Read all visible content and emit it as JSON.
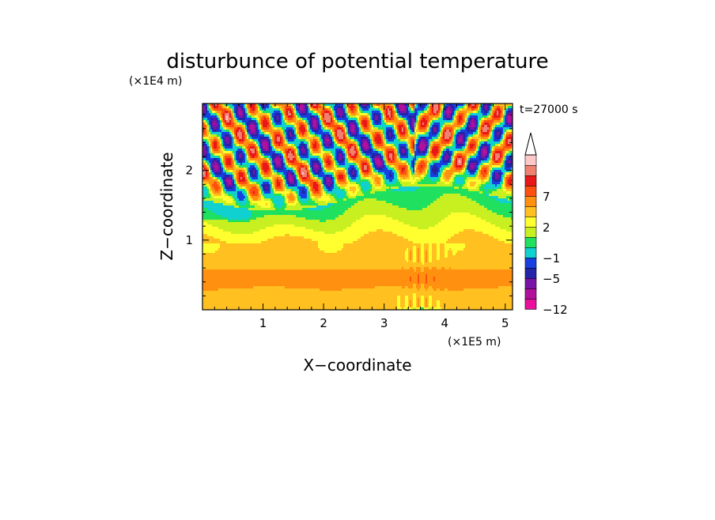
{
  "chart_data": {
    "type": "heatmap",
    "title": "disturbunce of potential temperature",
    "time_label": "t=27000 s",
    "xlabel": "X−coordinate",
    "ylabel": "Z−coordinate",
    "x_multiplier": "(×1E5 m)",
    "y_multiplier": "(×1E4 m)",
    "xlim": [
      0,
      5.12
    ],
    "ylim": [
      0,
      2.96
    ],
    "x_ticks": [
      1,
      2,
      3,
      4,
      5
    ],
    "y_ticks": [
      1,
      2
    ],
    "colorbar": {
      "levels": [
        -12,
        -9,
        -7,
        -5,
        -3,
        -1,
        0,
        1,
        2,
        3,
        5,
        7,
        9,
        11
      ],
      "colors": [
        "#e8109c",
        "#b0109c",
        "#7a14a8",
        "#2424a8",
        "#1840e0",
        "#10d0d0",
        "#20e060",
        "#c8f020",
        "#ffff30",
        "#ffc020",
        "#ff9010",
        "#ff5010",
        "#e81818",
        "#f08070",
        "#ffc8c8"
      ],
      "tick_labels": [
        "−12",
        "−5",
        "−1",
        "2",
        "7"
      ],
      "tick_values": [
        -12,
        -5,
        -1,
        2,
        7
      ],
      "extend": "max"
    },
    "field_description": {
      "lower_layer": {
        "z_range": [
          0,
          1.0
        ],
        "value_range": [
          2,
          5
        ]
      },
      "mid_layer": {
        "z_range": [
          1.0,
          1.6
        ],
        "value_range": [
          -1,
          2
        ]
      },
      "upper_layer": {
        "z_range": [
          1.6,
          2.96
        ],
        "value_range": [
          -9,
          11
        ]
      }
    }
  }
}
